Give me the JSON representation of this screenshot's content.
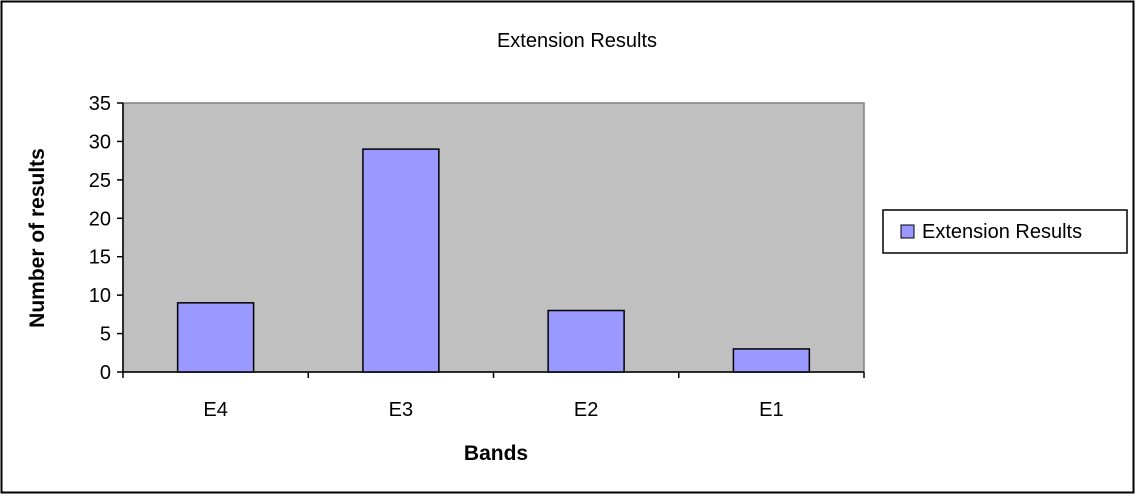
{
  "chart_data": {
    "type": "bar",
    "title": "Extension Results",
    "xlabel": "Bands",
    "ylabel": "Number of results",
    "categories": [
      "E4",
      "E3",
      "E2",
      "E1"
    ],
    "series": [
      {
        "name": "Extension Results",
        "values": [
          9,
          29,
          8,
          3
        ]
      }
    ],
    "ylim": [
      0,
      35
    ],
    "yticks": [
      0,
      5,
      10,
      15,
      20,
      25,
      30,
      35
    ],
    "grid": false,
    "legend": "right",
    "colors": {
      "plot_background": "#c0c0c0",
      "bar_fill": "#9999ff",
      "bar_stroke": "#000000"
    }
  }
}
